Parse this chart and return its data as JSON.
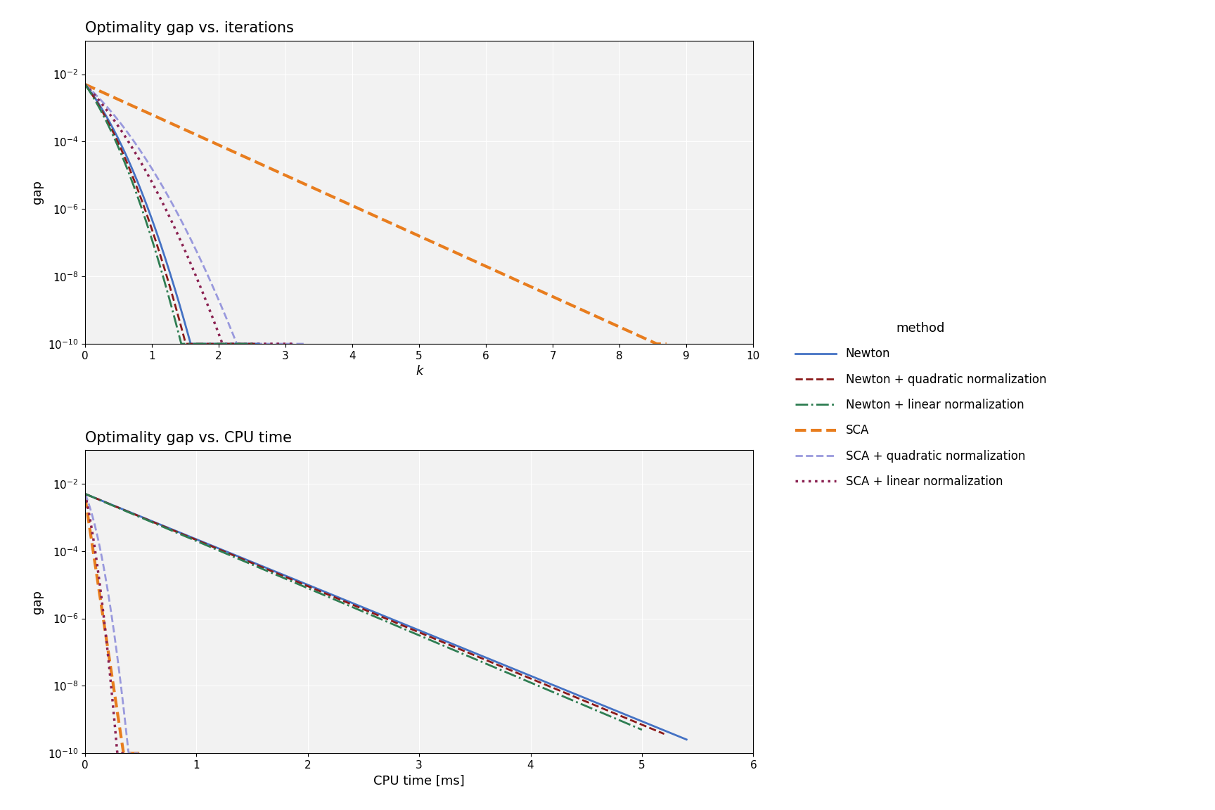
{
  "title1": "Optimality gap vs. iterations",
  "title2": "Optimality gap vs. CPU time",
  "xlabel1": "k",
  "xlabel2": "CPU time [ms]",
  "ylabel": "gap",
  "ylim": [
    1e-10,
    0.1
  ],
  "xlim1": [
    0,
    10
  ],
  "xlim2": [
    0,
    6
  ],
  "background_color": "#ffffff",
  "plot_bg_color": "#f2f2f2",
  "grid_color": "#ffffff",
  "methods": [
    {
      "label": "Newton",
      "color": "#4472C4",
      "linestyle": "solid",
      "linewidth": 2.0
    },
    {
      "label": "Newton + quadratic normalization",
      "color": "#8B1A1A",
      "linestyle": "dashed",
      "linewidth": 2.0
    },
    {
      "label": "Newton + linear normalization",
      "color": "#2E7D52",
      "linestyle": "dashdot",
      "linewidth": 2.0
    },
    {
      "label": "SCA",
      "color": "#E87D1E",
      "linestyle": "dashed",
      "linewidth": 3.0
    },
    {
      "label": "SCA + quadratic normalization",
      "color": "#9999DD",
      "linestyle": "dashed",
      "linewidth": 2.0
    },
    {
      "label": "SCA + linear normalization",
      "color": "#8B2252",
      "linestyle": "dotted",
      "linewidth": 2.5
    }
  ],
  "legend_title": "method",
  "legend_fontsize": 12,
  "legend_title_fontsize": 13
}
